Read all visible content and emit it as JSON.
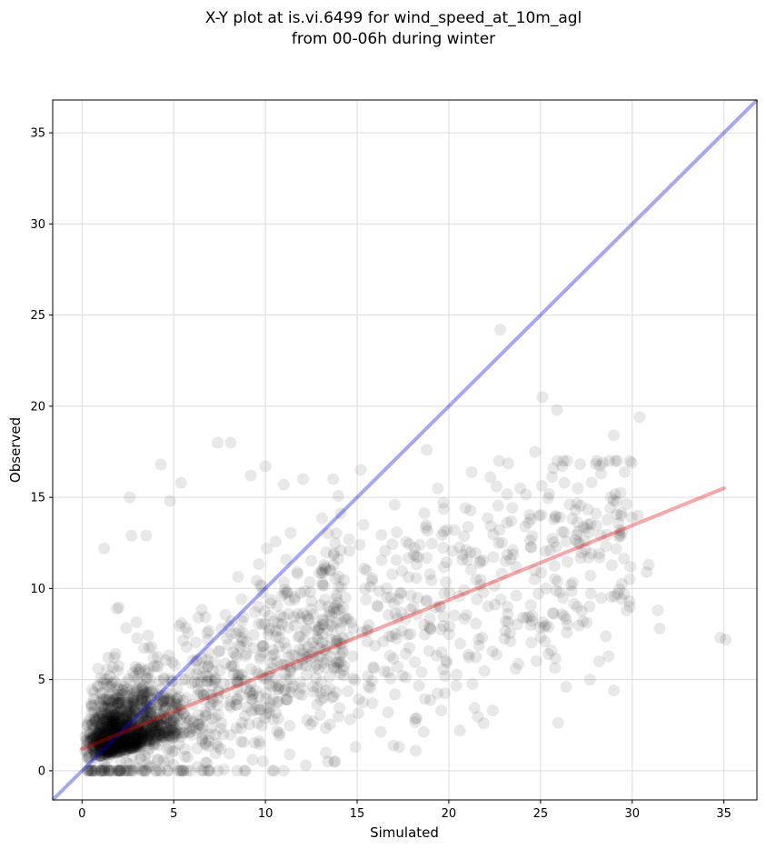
{
  "chart_data": {
    "type": "scatter",
    "title_line1": "X-Y plot at is.vi.6499 for wind_speed_at_10m_agl",
    "title_line2": "from 00-06h during winter",
    "xlabel": "Simulated",
    "ylabel": "Observed",
    "xlim": [
      -1.6,
      36.8
    ],
    "ylim": [
      -1.6,
      36.8
    ],
    "xticks": [
      0,
      5,
      10,
      15,
      20,
      25,
      30,
      35
    ],
    "yticks": [
      0,
      5,
      10,
      15,
      20,
      25,
      30,
      35
    ],
    "grid": true,
    "point_color": "#000000",
    "point_alpha": 0.09,
    "one_to_one_line": {
      "color": "#0000ee",
      "alpha": 0.35,
      "from": [
        -1.6,
        -1.6
      ],
      "to": [
        36.8,
        36.8
      ]
    },
    "fit_line": {
      "color": "#ee0000",
      "alpha": 0.35,
      "from": [
        0.0,
        1.2
      ],
      "to": [
        35.0,
        15.5
      ]
    },
    "outlier_points": [
      [
        22.8,
        24.2
      ],
      [
        25.1,
        20.5
      ],
      [
        25.9,
        19.8
      ],
      [
        30.4,
        19.4
      ],
      [
        29.0,
        18.4
      ],
      [
        7.4,
        18.0
      ],
      [
        8.1,
        18.0
      ],
      [
        18.8,
        17.6
      ],
      [
        24.7,
        17.5
      ],
      [
        28.4,
        16.9
      ],
      [
        4.3,
        16.8
      ],
      [
        9.2,
        16.2
      ],
      [
        10.0,
        16.7
      ],
      [
        15.2,
        16.5
      ],
      [
        25.7,
        16.6
      ],
      [
        5.4,
        15.8
      ],
      [
        11.0,
        15.7
      ],
      [
        19.4,
        15.5
      ],
      [
        22.6,
        15.6
      ],
      [
        23.9,
        15.5
      ],
      [
        2.6,
        15.0
      ],
      [
        4.8,
        14.8
      ],
      [
        26.3,
        15.8
      ],
      [
        28.3,
        16.3
      ],
      [
        29.4,
        14.0
      ],
      [
        34.8,
        7.3
      ],
      [
        35.1,
        7.2
      ],
      [
        31.4,
        8.8
      ],
      [
        31.5,
        7.8
      ],
      [
        30.9,
        11.3
      ],
      [
        30.8,
        10.9
      ],
      [
        29.9,
        11.2
      ],
      [
        29.0,
        4.4
      ],
      [
        27.7,
        5.0
      ],
      [
        28.2,
        6.0
      ],
      [
        26.4,
        4.6
      ],
      [
        25.6,
        6.6
      ],
      [
        22.4,
        3.3
      ],
      [
        21.9,
        2.6
      ],
      [
        20.6,
        2.2
      ],
      [
        19.8,
        5.2
      ],
      [
        17.3,
        1.3
      ],
      [
        18.2,
        1.1
      ],
      [
        13.8,
        0.5
      ],
      [
        12.2,
        0.3
      ],
      [
        1.2,
        12.2
      ],
      [
        3.5,
        12.9
      ],
      [
        2.7,
        12.9
      ],
      [
        26.9,
        14.3
      ],
      [
        30.3,
        14.0
      ]
    ]
  }
}
